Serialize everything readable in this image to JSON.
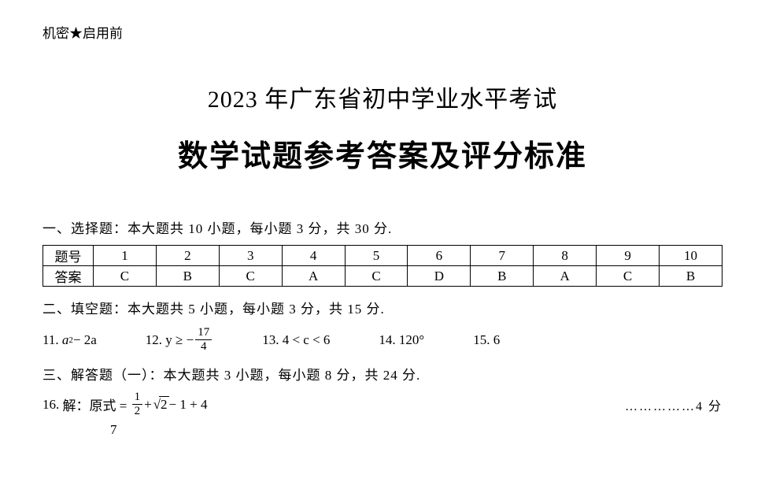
{
  "confidential": "机密★启用前",
  "title1": "2023 年广东省初中学业水平考试",
  "title2": "数学试题参考答案及评分标准",
  "section1": {
    "heading": "一、选择题：本大题共 10 小题，每小题 3 分，共 30 分.",
    "rowLabel1": "题号",
    "rowLabel2": "答案",
    "nums": [
      "1",
      "2",
      "3",
      "4",
      "5",
      "6",
      "7",
      "8",
      "9",
      "10"
    ],
    "answers": [
      "C",
      "B",
      "C",
      "A",
      "C",
      "D",
      "B",
      "A",
      "C",
      "B"
    ]
  },
  "section2": {
    "heading": "二、填空题：本大题共 5 小题，每小题 3 分，共 15 分.",
    "q11": {
      "num": "11.",
      "expr_pre": "a",
      "expr_sup": "2",
      "expr_post": " − 2a"
    },
    "q12": {
      "num": "12.",
      "pre": "y ≥ −",
      "frac_num": "17",
      "frac_den": "4"
    },
    "q13": {
      "num": "13.",
      "text": "4 < c < 6"
    },
    "q14": {
      "num": "14.",
      "text": "120°"
    },
    "q15": {
      "num": "15.",
      "text": "6"
    }
  },
  "section3": {
    "heading": "三、解答题（一）：本大题共 3 小题，每小题 8 分，共 24 分.",
    "q16": {
      "num": "16.",
      "label": "解：原式 =",
      "frac_num": "1",
      "frac_den": "2",
      "mid": " + ",
      "sqrt": "2",
      "post": " − 1 + 4",
      "score": "……………4 分"
    },
    "cutoff": {
      "n7": "7"
    }
  }
}
